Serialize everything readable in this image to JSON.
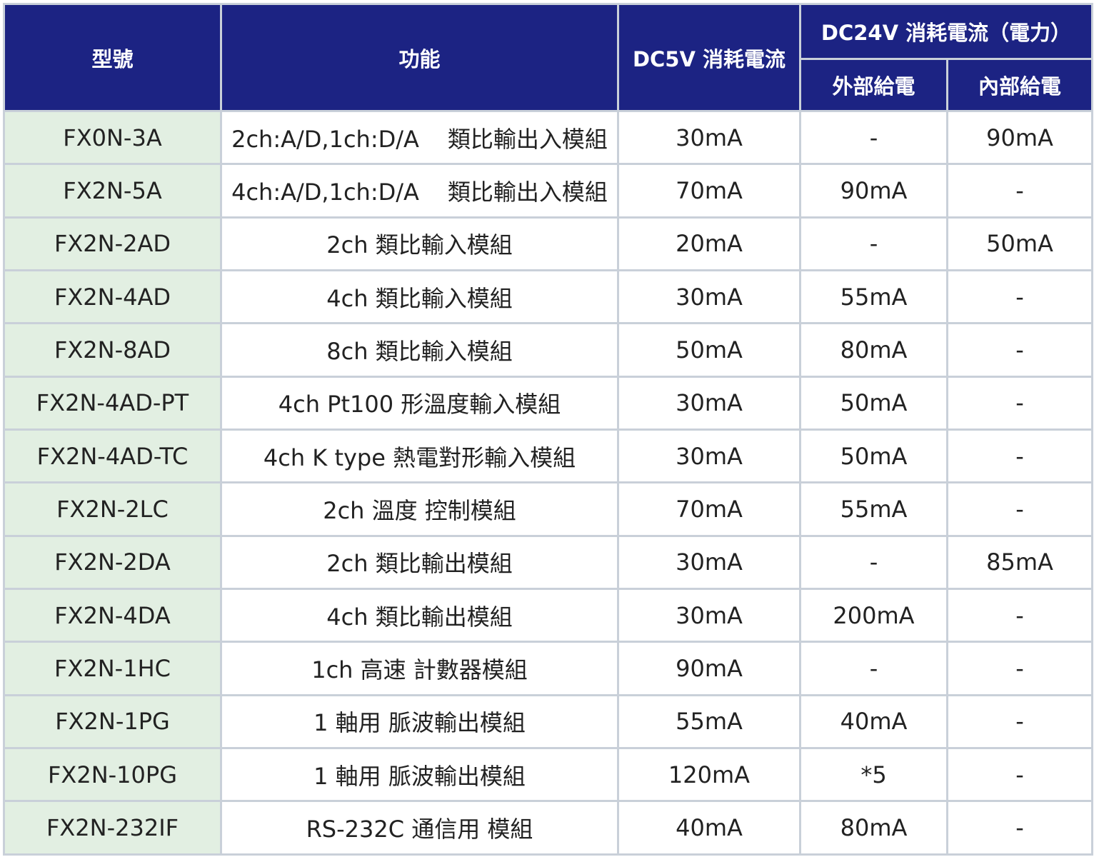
{
  "headers": {
    "model": "型號",
    "function": "功能",
    "dc5v": "DC5V 消耗電流",
    "dc24v": "DC24V 消耗電流（電力）",
    "external": "外部給電",
    "internal": "內部給電"
  },
  "colors": {
    "header_bg": "#1c2383",
    "model_bg": "#e2efe2",
    "grid": "#c9d0d9"
  },
  "rows": [
    {
      "model": "FX0N-3A",
      "func_a": "2ch:A/D,1ch:D/A",
      "func_b": "類比輸出入模組",
      "dc5v": "30mA",
      "external": "-",
      "internal": "90mA"
    },
    {
      "model": "FX2N-5A",
      "func_a": "4ch:A/D,1ch:D/A",
      "func_b": "類比輸出入模組",
      "dc5v": "70mA",
      "external": "90mA",
      "internal": "-"
    },
    {
      "model": "FX2N-2AD",
      "func": "2ch 類比輸入模組",
      "dc5v": "20mA",
      "external": "-",
      "internal": "50mA"
    },
    {
      "model": "FX2N-4AD",
      "func": "4ch 類比輸入模組",
      "dc5v": "30mA",
      "external": "55mA",
      "internal": "-"
    },
    {
      "model": "FX2N-8AD",
      "func": "8ch 類比輸入模組",
      "dc5v": "50mA",
      "external": "80mA",
      "internal": "-"
    },
    {
      "model": "FX2N-4AD-PT",
      "func": "4ch Pt100 形溫度輸入模組",
      "dc5v": "30mA",
      "external": "50mA",
      "internal": "-"
    },
    {
      "model": "FX2N-4AD-TC",
      "func": "4ch K type 熱電對形輸入模組",
      "dc5v": "30mA",
      "external": "50mA",
      "internal": "-"
    },
    {
      "model": "FX2N-2LC",
      "func": "2ch 溫度 控制模組",
      "dc5v": "70mA",
      "external": "55mA",
      "internal": "-"
    },
    {
      "model": "FX2N-2DA",
      "func": "2ch 類比輸出模組",
      "dc5v": "30mA",
      "external": "-",
      "internal": "85mA"
    },
    {
      "model": "FX2N-4DA",
      "func": "4ch 類比輸出模組",
      "dc5v": "30mA",
      "external": "200mA",
      "internal": "-"
    },
    {
      "model": "FX2N-1HC",
      "func": "1ch 高速 計數器模組",
      "dc5v": "90mA",
      "external": "-",
      "internal": "-"
    },
    {
      "model": "FX2N-1PG",
      "func": "1 軸用 脈波輸出模組",
      "dc5v": "55mA",
      "external": "40mA",
      "internal": "-"
    },
    {
      "model": "FX2N-10PG",
      "func": "1 軸用 脈波輸出模組",
      "dc5v": "120mA",
      "external": "*5",
      "internal": "-"
    },
    {
      "model": "FX2N-232IF",
      "func": "RS-232C 通信用 模組",
      "dc5v": "40mA",
      "external": "80mA",
      "internal": "-"
    }
  ]
}
